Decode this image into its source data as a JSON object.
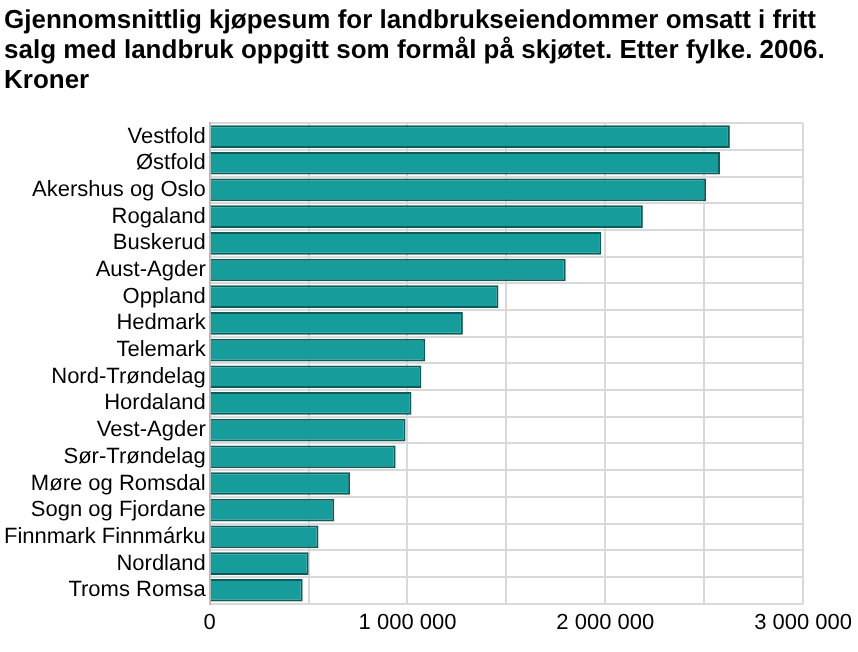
{
  "chart_data": {
    "type": "bar",
    "orientation": "horizontal",
    "title": "Gjennomsnittlig kjøpesum for landbrukseiendommer omsatt i fritt salg med landbruk oppgitt som formål på skjøtet. Etter fylke. 2006. Kroner",
    "categories": [
      "Vestfold",
      "Østfold",
      "Akershus og Oslo",
      "Rogaland",
      "Buskerud",
      "Aust-Agder",
      "Oppland",
      "Hedmark",
      "Telemark",
      "Nord-Trøndelag",
      "Hordaland",
      "Vest-Agder",
      "Sør-Trøndelag",
      "Møre og Romsdal",
      "Sogn og Fjordane",
      "Finnmark Finnmárku",
      "Nordland",
      "Troms Romsa"
    ],
    "values": [
      2630000,
      2580000,
      2510000,
      2190000,
      1980000,
      1800000,
      1460000,
      1280000,
      1090000,
      1070000,
      1020000,
      990000,
      940000,
      710000,
      630000,
      550000,
      500000,
      470000
    ],
    "color": "#169c9a",
    "xlim": [
      0,
      3000000
    ],
    "xticks": [
      0,
      {
        "value": 500000,
        "label": null
      },
      {
        "value": 1000000,
        "label": "1 000 000"
      },
      {
        "value": 1500000,
        "label": null
      },
      {
        "value": 2000000,
        "label": "2 000 000"
      },
      {
        "value": 2500000,
        "label": null
      },
      {
        "value": 3000000,
        "label": "3 000 000"
      }
    ],
    "grid": true,
    "legend": false
  }
}
